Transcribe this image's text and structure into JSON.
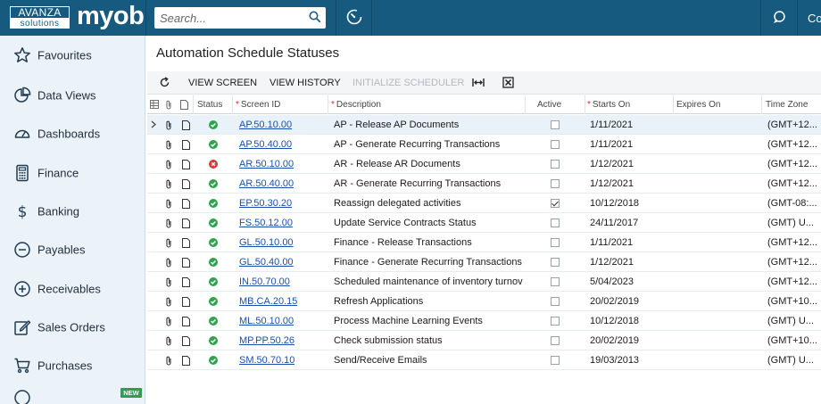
{
  "topbar": {
    "logo_avanza": "AVANZA",
    "logo_solutions": "solutions",
    "logo_myob": "myob",
    "search_placeholder": "Search...",
    "user_label": "Co"
  },
  "sidebar": {
    "items": [
      {
        "label": "Favourites",
        "icon": "star-icon"
      },
      {
        "label": "Data Views",
        "icon": "pie-chart-icon"
      },
      {
        "label": "Dashboards",
        "icon": "gauge-icon"
      },
      {
        "label": "Finance",
        "icon": "calculator-icon"
      },
      {
        "label": "Banking",
        "icon": "dollar-icon"
      },
      {
        "label": "Payables",
        "icon": "minus-circle-icon"
      },
      {
        "label": "Receivables",
        "icon": "plus-circle-icon"
      },
      {
        "label": "Sales Orders",
        "icon": "edit-icon"
      },
      {
        "label": "Purchases",
        "icon": "cart-icon"
      }
    ],
    "new_badge": "NEW"
  },
  "page": {
    "title": "Automation Schedule Statuses"
  },
  "toolbar": {
    "view_screen": "VIEW SCREEN",
    "view_history": "VIEW HISTORY",
    "initialize_scheduler": "INITIALIZE SCHEDULER"
  },
  "grid": {
    "headers": {
      "status": "Status",
      "screen_id": "Screen ID",
      "description": "Description",
      "active": "Active",
      "starts_on": "Starts On",
      "expires_on": "Expires On",
      "time_zone": "Time Zone"
    },
    "rows": [
      {
        "status": "ok",
        "screen_id": "AP.50.10.00",
        "description": "AP - Release AP Documents",
        "active": false,
        "starts_on": "1/11/2021",
        "expires_on": "",
        "time_zone": "(GMT+12..."
      },
      {
        "status": "ok",
        "screen_id": "AP.50.40.00",
        "description": "AP - Generate Recurring Transactions",
        "active": false,
        "starts_on": "1/11/2021",
        "expires_on": "",
        "time_zone": "(GMT+12..."
      },
      {
        "status": "error",
        "screen_id": "AR.50.10.00",
        "description": "AR - Release AR Documents",
        "active": false,
        "starts_on": "1/12/2021",
        "expires_on": "",
        "time_zone": "(GMT+12..."
      },
      {
        "status": "ok",
        "screen_id": "AR.50.40.00",
        "description": "AR - Generate Recurring Transactions",
        "active": false,
        "starts_on": "1/12/2021",
        "expires_on": "",
        "time_zone": "(GMT+12..."
      },
      {
        "status": "ok",
        "screen_id": "EP.50.30.20",
        "description": "Reassign delegated activities",
        "active": true,
        "starts_on": "10/12/2018",
        "expires_on": "",
        "time_zone": "(GMT-08:..."
      },
      {
        "status": "ok",
        "screen_id": "FS.50.12.00",
        "description": "Update Service Contracts Status",
        "active": false,
        "starts_on": "24/11/2017",
        "expires_on": "",
        "time_zone": "(GMT) U..."
      },
      {
        "status": "ok",
        "screen_id": "GL.50.10.00",
        "description": "Finance - Release Transactions",
        "active": false,
        "starts_on": "1/11/2021",
        "expires_on": "",
        "time_zone": "(GMT+12..."
      },
      {
        "status": "ok",
        "screen_id": "GL.50.40.00",
        "description": "Finance - Generate Recurring Transactions",
        "active": false,
        "starts_on": "1/12/2021",
        "expires_on": "",
        "time_zone": "(GMT+12..."
      },
      {
        "status": "ok",
        "screen_id": "IN.50.70.00",
        "description": "Scheduled maintenance of inventory turnove...",
        "active": false,
        "starts_on": "5/04/2023",
        "expires_on": "",
        "time_zone": "(GMT+12..."
      },
      {
        "status": "ok",
        "screen_id": "MB.CA.20.15",
        "description": "Refresh Applications",
        "active": false,
        "starts_on": "20/02/2019",
        "expires_on": "",
        "time_zone": "(GMT+10..."
      },
      {
        "status": "ok",
        "screen_id": "ML.50.10.00",
        "description": "Process Machine Learning Events",
        "active": false,
        "starts_on": "10/12/2018",
        "expires_on": "",
        "time_zone": "(GMT) U..."
      },
      {
        "status": "ok",
        "screen_id": "MP.PP.50.26",
        "description": "Check submission status",
        "active": false,
        "starts_on": "20/02/2019",
        "expires_on": "",
        "time_zone": "(GMT+10..."
      },
      {
        "status": "ok",
        "screen_id": "SM.50.70.10",
        "description": "Send/Receive Emails",
        "active": false,
        "starts_on": "19/03/2013",
        "expires_on": "",
        "time_zone": "(GMT) U..."
      }
    ]
  },
  "colors": {
    "topbar": "#165a80",
    "sidebar": "#ecf3f8",
    "status_ok": "#2ea44f",
    "status_error": "#d93a3a",
    "link": "#1a4fae"
  }
}
